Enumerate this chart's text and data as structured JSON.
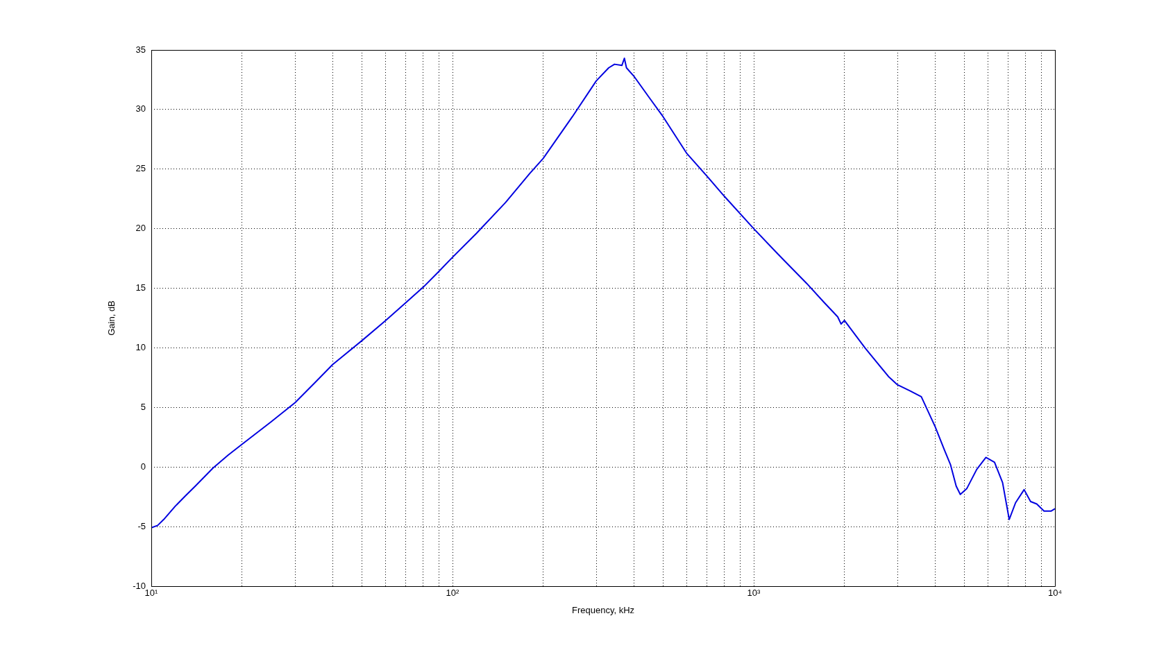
{
  "chart_data": {
    "type": "line",
    "xlabel": "Frequency, kHz",
    "ylabel": "Gain, dB",
    "log": "x",
    "grid": true,
    "marker": "none",
    "line_style": "solid",
    "xlim": [
      10,
      10000
    ],
    "ylim": [
      -10,
      35
    ],
    "xticks": [
      {
        "value": 10,
        "label": "10¹"
      },
      {
        "value": 20,
        "label": null
      },
      {
        "value": 30,
        "label": null
      },
      {
        "value": 40,
        "label": null
      },
      {
        "value": 50,
        "label": null
      },
      {
        "value": 60,
        "label": null
      },
      {
        "value": 70,
        "label": null
      },
      {
        "value": 80,
        "label": null
      },
      {
        "value": 90,
        "label": null
      },
      {
        "value": 100,
        "label": "10²"
      },
      {
        "value": 200,
        "label": null
      },
      {
        "value": 300,
        "label": null
      },
      {
        "value": 400,
        "label": null
      },
      {
        "value": 500,
        "label": null
      },
      {
        "value": 600,
        "label": null
      },
      {
        "value": 700,
        "label": null
      },
      {
        "value": 800,
        "label": null
      },
      {
        "value": 900,
        "label": null
      },
      {
        "value": 1000,
        "label": "10³"
      },
      {
        "value": 2000,
        "label": null
      },
      {
        "value": 3000,
        "label": null
      },
      {
        "value": 4000,
        "label": null
      },
      {
        "value": 5000,
        "label": null
      },
      {
        "value": 6000,
        "label": null
      },
      {
        "value": 7000,
        "label": null
      },
      {
        "value": 8000,
        "label": null
      },
      {
        "value": 9000,
        "label": null
      },
      {
        "value": 10000,
        "label": "10⁴"
      }
    ],
    "yticks": [
      -10,
      -5,
      0,
      5,
      10,
      15,
      20,
      25,
      30,
      35
    ],
    "x": [
      10,
      10.5,
      11,
      12,
      13,
      14,
      16,
      18,
      20,
      25,
      30,
      35,
      40,
      50,
      60,
      70,
      80,
      90,
      100,
      120,
      150,
      180,
      200,
      250,
      300,
      330,
      345,
      365,
      372,
      378,
      400,
      450,
      500,
      600,
      700,
      800,
      1000,
      1200,
      1500,
      1700,
      1900,
      1950,
      2000,
      2340,
      2800,
      3000,
      3300,
      3600,
      4000,
      4300,
      4500,
      4700,
      4850,
      5100,
      5500,
      5900,
      6300,
      6700,
      7050,
      7400,
      7900,
      8300,
      8700,
      9200,
      9700,
      10000
    ],
    "series": [
      {
        "color": "#0000e0",
        "values": [
          -5.1,
          -4.9,
          -4.4,
          -3.3,
          -2.4,
          -1.6,
          -0.1,
          1.0,
          1.9,
          3.8,
          5.4,
          7.1,
          8.6,
          10.6,
          12.3,
          13.8,
          15.1,
          16.4,
          17.6,
          19.6,
          22.2,
          24.6,
          25.9,
          29.4,
          32.4,
          33.5,
          33.8,
          33.7,
          34.3,
          33.5,
          32.8,
          31.0,
          29.4,
          26.3,
          24.4,
          22.7,
          20.0,
          17.9,
          15.4,
          13.9,
          12.6,
          12.0,
          12.3,
          10.0,
          7.6,
          6.9,
          6.4,
          5.9,
          3.4,
          1.4,
          0.2,
          -1.6,
          -2.3,
          -1.8,
          -0.2,
          0.8,
          0.4,
          -1.3,
          -4.4,
          -3.0,
          -1.9,
          -2.9,
          -3.1,
          -3.7,
          -3.7,
          -3.5
        ]
      }
    ]
  }
}
